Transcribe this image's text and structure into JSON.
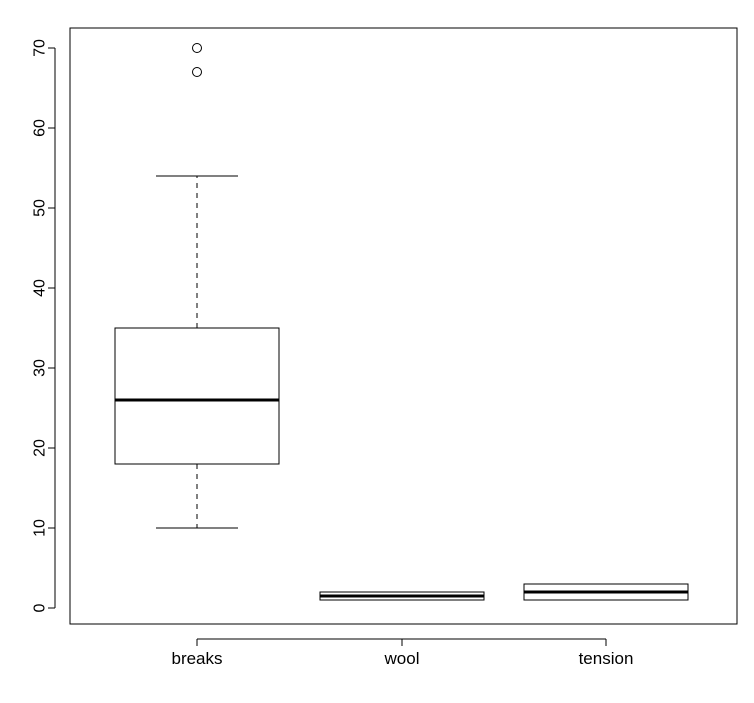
{
  "chart_data": {
    "type": "boxplot",
    "title": "",
    "xlabel": "",
    "ylabel": "",
    "ylim": [
      -2,
      72
    ],
    "y_ticks": [
      0,
      10,
      20,
      30,
      40,
      50,
      60,
      70
    ],
    "y_tick_labels": [
      "0",
      "10",
      "20",
      "30",
      "40",
      "50",
      "60",
      "70"
    ],
    "grid": false,
    "categories": [
      "breaks",
      "wool",
      "tension"
    ],
    "boxes": [
      {
        "name": "breaks",
        "whisker_low": 10,
        "q1": 18,
        "median": 26,
        "q3": 35,
        "whisker_high": 54,
        "outliers": [
          67,
          70
        ]
      },
      {
        "name": "wool",
        "whisker_low": 1,
        "q1": 1,
        "median": 1.5,
        "q3": 2,
        "whisker_high": 2,
        "outliers": []
      },
      {
        "name": "tension",
        "whisker_low": 1,
        "q1": 1,
        "median": 2,
        "q3": 3,
        "whisker_high": 3,
        "outliers": []
      }
    ]
  },
  "colors": {
    "background": "#ffffff",
    "stroke": "#000000",
    "box_fill": "#ffffff"
  }
}
